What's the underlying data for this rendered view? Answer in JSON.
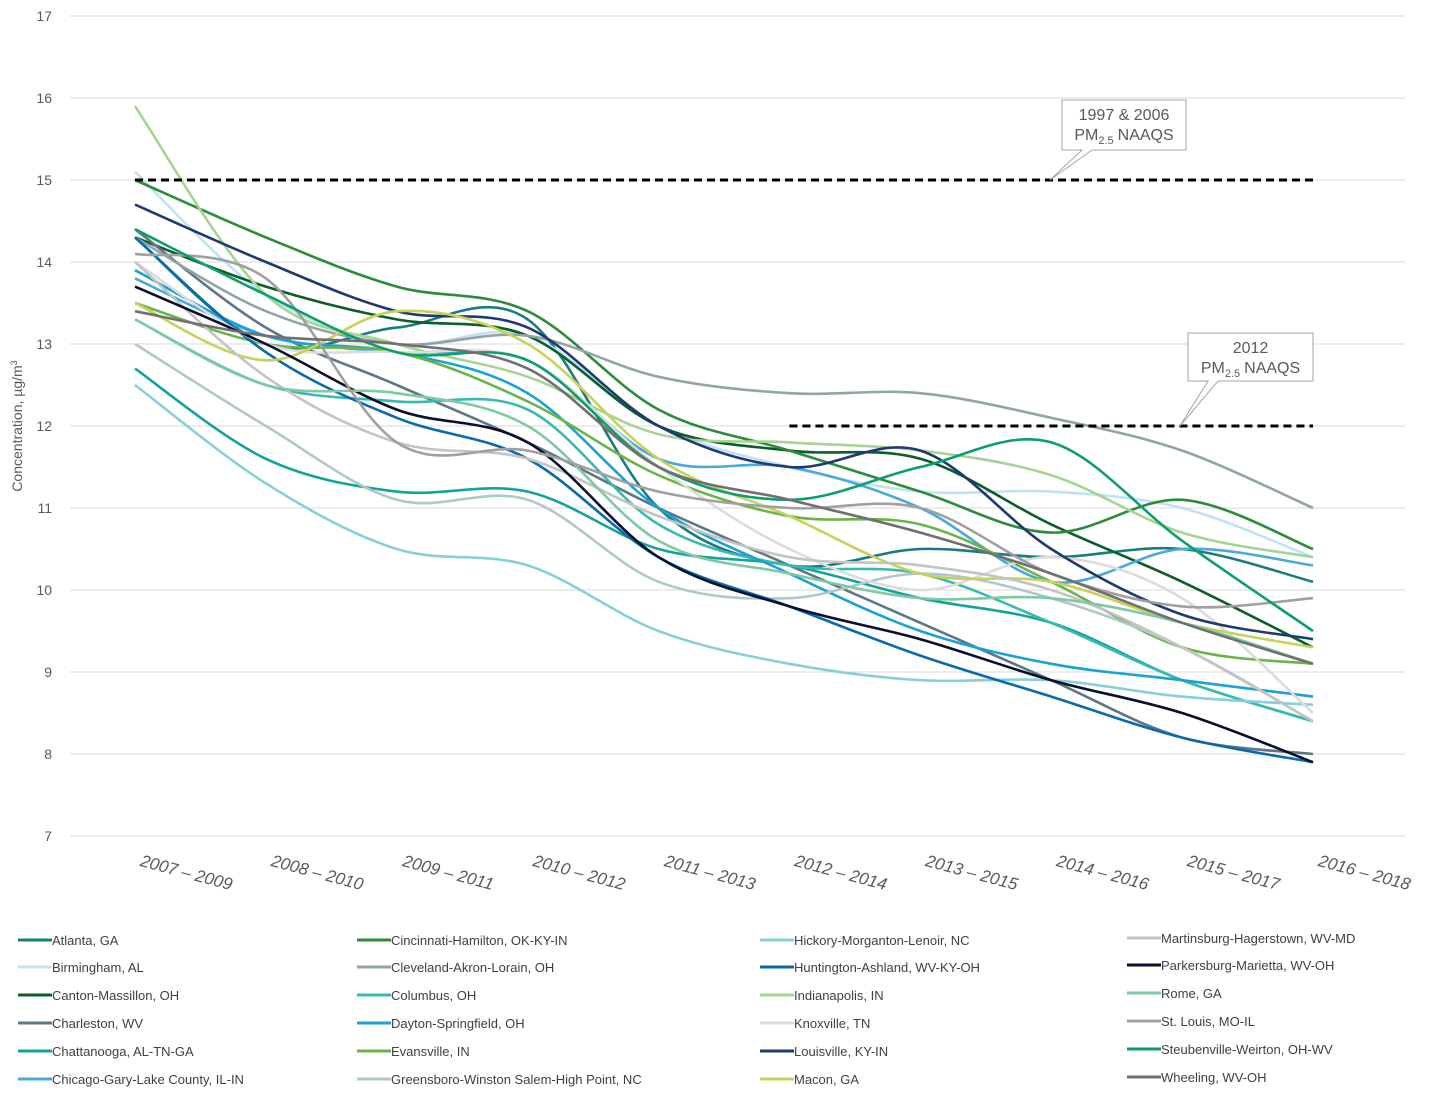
{
  "chart_data": {
    "type": "line",
    "y_label": {
      "text": "Concentration, µg/m",
      "sup": "3"
    },
    "categories": [
      "2007 – 2009",
      "2008 – 2010",
      "2009 – 2011",
      "2010 – 2012",
      "2011 – 2013",
      "2012 – 2014",
      "2013 – 2015",
      "2014 – 2016",
      "2015 – 2017",
      "2016 – 2018"
    ],
    "ylim": [
      7,
      17
    ],
    "yticks": [
      7,
      8,
      9,
      10,
      11,
      12,
      13,
      14,
      15,
      16,
      17
    ],
    "grid": true,
    "smooth": true,
    "legend": "bottom",
    "reference_lines": [
      {
        "value": 15,
        "from": "2007 – 2009",
        "to": "2016 – 2018",
        "line1": "1997 & 2006",
        "pm": "PM",
        "sub": "2.5",
        "rest": "NAAQS"
      },
      {
        "value": 12,
        "from": "2012 – 2014",
        "to": "2016 – 2018",
        "line1": "2012",
        "pm": "PM",
        "sub": "2.5",
        "rest": "NAAQS"
      }
    ],
    "series": [
      {
        "name": "Atlanta, GA",
        "color": "#1b7c80",
        "values": [
          14.3,
          13.0,
          13.2,
          13.3,
          11.0,
          10.3,
          10.5,
          10.4,
          10.5,
          10.1
        ]
      },
      {
        "name": "Birmingham, AL",
        "color": "#bfe3f5",
        "values": [
          15.1,
          13.6,
          13.0,
          13.1,
          12.0,
          11.5,
          11.2,
          11.2,
          11.0,
          10.4
        ]
      },
      {
        "name": "Canton-Massillon, OH",
        "color": "#0b5e2a",
        "values": [
          14.3,
          13.7,
          13.3,
          13.1,
          12.0,
          11.7,
          11.6,
          10.8,
          10.1,
          9.3
        ]
      },
      {
        "name": "Charleston, WV",
        "color": "#5e7785",
        "values": [
          14.4,
          13.2,
          12.5,
          11.8,
          11.0,
          10.3,
          9.6,
          8.9,
          8.2,
          8.0
        ]
      },
      {
        "name": "Chattanooga, AL-TN-GA",
        "color": "#13a39a",
        "values": [
          12.7,
          11.6,
          11.2,
          11.2,
          10.5,
          10.3,
          9.9,
          9.6,
          8.9,
          8.4
        ]
      },
      {
        "name": "Chicago-Gary-Lake County, IL-IN",
        "color": "#4aa8dc",
        "values": [
          13.8,
          13.1,
          12.9,
          12.8,
          11.6,
          11.5,
          11.0,
          10.1,
          10.5,
          10.3
        ]
      },
      {
        "name": "Cincinnati-Hamilton, OK-KY-IN",
        "color": "#2e8b3c",
        "values": [
          15.0,
          14.3,
          13.7,
          13.4,
          12.2,
          11.7,
          11.2,
          10.7,
          11.1,
          10.5
        ]
      },
      {
        "name": "Cleveland-Akron-Lorain, OH",
        "color": "#90a4aa",
        "values": [
          14.3,
          13.4,
          13.0,
          13.1,
          12.6,
          12.4,
          12.4,
          12.1,
          11.7,
          11.0
        ]
      },
      {
        "name": "Columbus, OH",
        "color": "#3ab9b0",
        "values": [
          13.3,
          12.5,
          12.3,
          12.2,
          10.8,
          10.3,
          10.2,
          9.6,
          8.9,
          8.4
        ]
      },
      {
        "name": "Dayton-Springfield, OH",
        "color": "#1aa1d8",
        "values": [
          13.9,
          13.1,
          12.9,
          12.4,
          11.0,
          10.2,
          9.5,
          9.1,
          8.9,
          8.7
        ]
      },
      {
        "name": "Evansville, IN",
        "color": "#6ab44a",
        "values": [
          13.5,
          13.0,
          12.9,
          12.3,
          11.4,
          10.9,
          10.8,
          10.1,
          9.3,
          9.1
        ]
      },
      {
        "name": "Greensboro-Winston Salem-High Point, NC",
        "color": "#b0c8cc",
        "values": [
          13.0,
          12.0,
          11.1,
          11.1,
          10.1,
          9.9,
          10.2,
          9.9,
          9.3,
          8.4
        ]
      },
      {
        "name": "Hickory-Morganton-Lenoir, NC",
        "color": "#88d0d8",
        "values": [
          12.5,
          11.3,
          10.5,
          10.3,
          9.5,
          9.1,
          8.9,
          8.9,
          8.7,
          8.6
        ]
      },
      {
        "name": "Huntington-Ashland, WV-KY-OH",
        "color": "#0a6aad",
        "values": [
          14.3,
          12.9,
          12.1,
          11.6,
          10.4,
          9.8,
          9.2,
          8.7,
          8.2,
          7.9
        ]
      },
      {
        "name": "Indianapolis, IN",
        "color": "#a6d494",
        "values": [
          15.9,
          13.6,
          13.0,
          12.6,
          11.9,
          11.8,
          11.7,
          11.4,
          10.7,
          10.4
        ]
      },
      {
        "name": "Knoxville, TN",
        "color": "#dcdcdc",
        "values": [
          14.0,
          13.0,
          12.9,
          12.8,
          11.5,
          10.5,
          10.0,
          10.4,
          9.9,
          8.5
        ]
      },
      {
        "name": "Louisville, KY-IN",
        "color": "#1f3a6e",
        "values": [
          14.7,
          14.0,
          13.4,
          13.2,
          12.0,
          11.5,
          11.7,
          10.5,
          9.7,
          9.4
        ]
      },
      {
        "name": "Macon, GA",
        "color": "#c6d35a",
        "values": [
          13.5,
          12.8,
          13.4,
          13.0,
          11.6,
          10.9,
          10.2,
          10.1,
          9.6,
          9.3
        ]
      },
      {
        "name": "Martinsburg-Hagerstown, WV-MD",
        "color": "#c4c4c4",
        "values": [
          14.0,
          12.6,
          11.8,
          11.6,
          10.9,
          10.4,
          10.3,
          10.0,
          9.3,
          8.4
        ]
      },
      {
        "name": "Parkersburg-Marietta, WV-OH",
        "color": "#0a0f2e",
        "values": [
          13.7,
          13.0,
          12.2,
          11.8,
          10.4,
          9.8,
          9.4,
          8.9,
          8.5,
          7.9
        ]
      },
      {
        "name": "Rome, GA",
        "color": "#7fc9a4",
        "values": [
          13.3,
          12.5,
          12.4,
          12.0,
          10.6,
          10.2,
          9.9,
          9.9,
          9.6,
          9.1
        ]
      },
      {
        "name": "St. Louis, MO-IL",
        "color": "#a0a0a0",
        "values": [
          14.1,
          13.8,
          11.8,
          11.7,
          11.2,
          11.0,
          11.0,
          10.2,
          9.8,
          9.9
        ]
      },
      {
        "name": "Steubenville-Weirton, OH-WV",
        "color": "#0d9e6c",
        "values": [
          14.4,
          13.6,
          12.9,
          12.8,
          11.5,
          11.1,
          11.5,
          11.8,
          10.6,
          9.5
        ]
      },
      {
        "name": "Wheeling, WV-OH",
        "color": "#707070",
        "values": [
          13.4,
          13.1,
          13.0,
          12.7,
          11.5,
          11.1,
          10.7,
          10.2,
          9.6,
          9.1
        ]
      }
    ]
  }
}
